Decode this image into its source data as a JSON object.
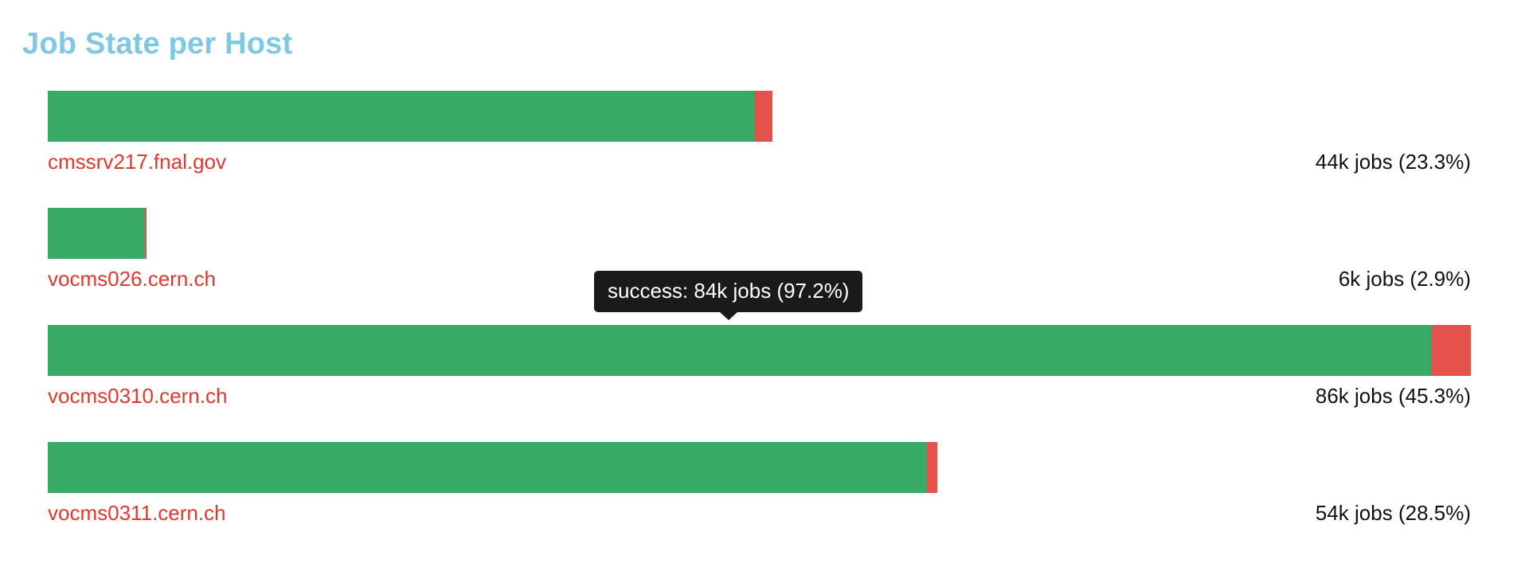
{
  "title": "Job State per Host",
  "tooltip": {
    "text": "success: 84k jobs (97.2%)"
  },
  "colors": {
    "title": "#7ec8e3",
    "success": "#38ac67",
    "failure": "#e5514b",
    "host_link": "#e0382d",
    "tooltip_bg": "#1a1a1a"
  },
  "chart_data": {
    "type": "bar",
    "orientation": "horizontal",
    "stacked": true,
    "title": "Job State per Host",
    "categories": [
      "cmssrv217.fnal.gov",
      "vocms026.cern.ch",
      "vocms0310.cern.ch",
      "vocms0311.cern.ch"
    ],
    "series": [
      {
        "values": [
          42.9,
          5.9,
          84,
          53.4
        ],
        "color": "#38ac67"
      },
      {
        "values": [
          1.1,
          0.1,
          2.4,
          0.6
        ],
        "color": "#e5514b"
      }
    ],
    "totals": [
      "44k jobs (23.3%)",
      "6k jobs (2.9%)",
      "86k jobs (45.3%)",
      "54k jobs (28.5%)"
    ],
    "xlim": [
      0,
      86.4
    ],
    "grid": false,
    "legend": "none"
  }
}
